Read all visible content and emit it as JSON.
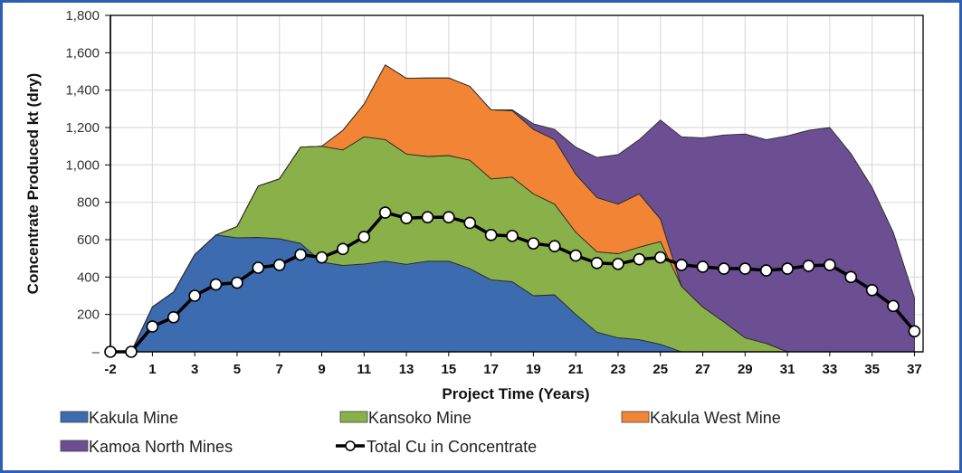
{
  "chart_data": {
    "type": "area",
    "stacked": true,
    "title": "",
    "xlabel": "Project Time (Years)",
    "ylabel": "Concentrate Produced kt (dry)",
    "ylim": [
      0,
      1800
    ],
    "y_ticks": [
      "–",
      "200",
      "400",
      "600",
      "800",
      "1,000",
      "1,200",
      "1,400",
      "1,600",
      "1,800"
    ],
    "y_tick_values": [
      0,
      200,
      400,
      600,
      800,
      1000,
      1200,
      1400,
      1600,
      1800
    ],
    "x_ticks": [
      "-2",
      "1",
      "3",
      "5",
      "7",
      "9",
      "11",
      "13",
      "15",
      "17",
      "19",
      "21",
      "23",
      "25",
      "27",
      "29",
      "31",
      "33",
      "35",
      "37"
    ],
    "x_tick_values": [
      -2,
      1,
      3,
      5,
      7,
      9,
      11,
      13,
      15,
      17,
      19,
      21,
      23,
      25,
      27,
      29,
      31,
      33,
      35,
      37
    ],
    "x": [
      -2,
      0,
      1,
      2,
      3,
      4,
      5,
      6,
      7,
      8,
      9,
      10,
      11,
      12,
      13,
      14,
      15,
      16,
      17,
      18,
      19,
      20,
      21,
      22,
      23,
      24,
      25,
      26,
      27,
      28,
      29,
      30,
      31,
      32,
      33,
      34,
      35,
      36,
      37
    ],
    "grid": true,
    "legend_position": "bottom",
    "series": [
      {
        "name": "Kakula Mine",
        "kind": "area",
        "color": "#3d6baf",
        "values": [
          0,
          0,
          240,
          320,
          520,
          625,
          610,
          612,
          605,
          580,
          480,
          462,
          470,
          485,
          468,
          485,
          485,
          445,
          385,
          375,
          300,
          305,
          200,
          105,
          75,
          65,
          40,
          0,
          0,
          0,
          0,
          0,
          0,
          0,
          0,
          0,
          0,
          0,
          0
        ]
      },
      {
        "name": "Kansoko Mine",
        "kind": "area",
        "color": "#8ab04a",
        "values": [
          0,
          0,
          0,
          0,
          0,
          0,
          60,
          275,
          320,
          515,
          620,
          618,
          680,
          650,
          590,
          560,
          565,
          580,
          540,
          560,
          545,
          485,
          440,
          430,
          450,
          495,
          550,
          350,
          240,
          160,
          75,
          45,
          0,
          0,
          0,
          0,
          0,
          0,
          0
        ]
      },
      {
        "name": "Kakula West Mine",
        "kind": "area",
        "color": "#f28535",
        "values": [
          0,
          0,
          0,
          0,
          0,
          0,
          0,
          0,
          0,
          0,
          0,
          105,
          175,
          400,
          405,
          420,
          415,
          395,
          370,
          355,
          345,
          345,
          310,
          290,
          265,
          285,
          120,
          0,
          0,
          0,
          0,
          0,
          0,
          0,
          0,
          0,
          0,
          0,
          0
        ]
      },
      {
        "name": "Kamoa North Mines",
        "kind": "area",
        "color": "#6c4e92",
        "values": [
          0,
          0,
          0,
          0,
          0,
          0,
          0,
          0,
          0,
          0,
          0,
          0,
          0,
          0,
          0,
          0,
          0,
          0,
          0,
          5,
          30,
          55,
          145,
          215,
          265,
          290,
          530,
          800,
          905,
          1000,
          1090,
          1090,
          1155,
          1185,
          1200,
          1060,
          880,
          640,
          290
        ]
      },
      {
        "name": "Total Cu in Concentrate",
        "kind": "line",
        "color": "#000000",
        "values": [
          0,
          0,
          135,
          185,
          300,
          360,
          370,
          450,
          465,
          520,
          505,
          550,
          615,
          745,
          715,
          720,
          720,
          690,
          625,
          620,
          580,
          565,
          515,
          475,
          470,
          495,
          505,
          465,
          455,
          445,
          445,
          435,
          445,
          460,
          465,
          400,
          330,
          245,
          110
        ]
      }
    ]
  }
}
